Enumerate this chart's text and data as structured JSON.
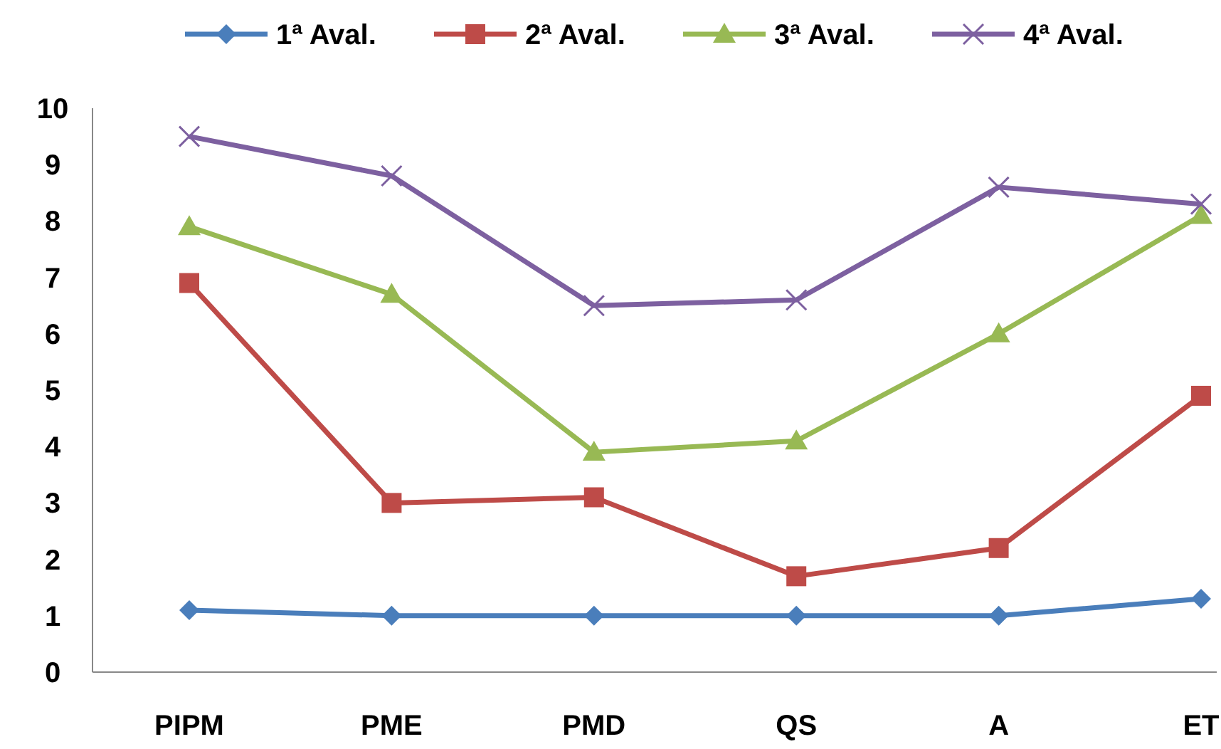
{
  "chart_data": {
    "type": "line",
    "categories": [
      "PIPM",
      "PME",
      "PMD",
      "QS",
      "A",
      "ET"
    ],
    "series": [
      {
        "name": "1ª Aval.",
        "color": "#4a7ebb",
        "marker": "diamond",
        "values": [
          1.1,
          1.0,
          1.0,
          1.0,
          1.0,
          1.3
        ]
      },
      {
        "name": "2ª Aval.",
        "color": "#be4b48",
        "marker": "square",
        "values": [
          6.9,
          3.0,
          3.1,
          1.7,
          2.2,
          4.9
        ]
      },
      {
        "name": "3ª Aval.",
        "color": "#98b954",
        "marker": "triangle",
        "values": [
          7.9,
          6.7,
          3.9,
          4.1,
          6.0,
          8.1
        ]
      },
      {
        "name": "4ª Aval.",
        "color": "#7d60a0",
        "marker": "cross",
        "values": [
          9.5,
          8.8,
          6.5,
          6.6,
          8.6,
          8.3
        ]
      }
    ],
    "ylim": [
      0,
      10
    ],
    "yticks": [
      0,
      1,
      2,
      3,
      4,
      5,
      6,
      7,
      8,
      9,
      10
    ],
    "legend": "top",
    "grid": false
  }
}
